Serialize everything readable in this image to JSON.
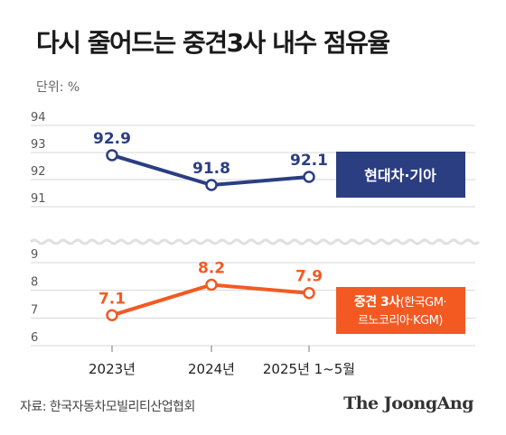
{
  "title": "다시 줄어드는 중견3사 내수 점유율",
  "unit_label": "단위: %",
  "source": "자료: 한국자동차모빌리티산업협회",
  "brand": "The JoongAng",
  "colors": {
    "series_1": "#2b3e82",
    "series_2": "#f25a22",
    "grid": "#d7d7d7",
    "axis_text": "#555555",
    "break_wave": "#e0e0e0"
  },
  "chart_data": {
    "type": "line",
    "categories": [
      "2023년",
      "2024년",
      "2025년 1~5월"
    ],
    "axis_break": true,
    "grid": true,
    "upper_panel": {
      "ylim": [
        91,
        94
      ],
      "yticks": [
        "91",
        "92",
        "93",
        "94"
      ]
    },
    "lower_panel": {
      "ylim": [
        6,
        9
      ],
      "yticks": [
        "6",
        "7",
        "8",
        "9"
      ]
    },
    "series": [
      {
        "name": "현대차·기아",
        "panel": "upper",
        "values": [
          92.9,
          91.8,
          92.1
        ],
        "labels": [
          "92.9",
          "91.8",
          "92.1"
        ],
        "color": "#2b3e82"
      },
      {
        "name_bold": "중견 3사",
        "name_rest": "(한국GM·",
        "name_line2": "르노코리아·KGM)",
        "panel": "lower",
        "values": [
          7.1,
          8.2,
          7.9
        ],
        "labels": [
          "7.1",
          "8.2",
          "7.9"
        ],
        "color": "#f25a22"
      }
    ]
  }
}
